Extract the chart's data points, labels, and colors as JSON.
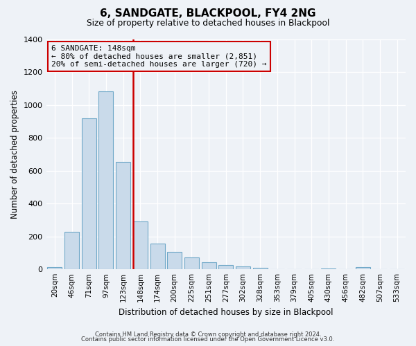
{
  "title": "6, SANDGATE, BLACKPOOL, FY4 2NG",
  "subtitle": "Size of property relative to detached houses in Blackpool",
  "xlabel": "Distribution of detached houses by size in Blackpool",
  "ylabel": "Number of detached properties",
  "bar_labels": [
    "20sqm",
    "46sqm",
    "71sqm",
    "97sqm",
    "123sqm",
    "148sqm",
    "174sqm",
    "200sqm",
    "225sqm",
    "251sqm",
    "277sqm",
    "302sqm",
    "328sqm",
    "353sqm",
    "379sqm",
    "405sqm",
    "430sqm",
    "456sqm",
    "482sqm",
    "507sqm",
    "533sqm"
  ],
  "bar_values": [
    15,
    228,
    918,
    1082,
    655,
    293,
    158,
    108,
    72,
    42,
    25,
    18,
    10,
    0,
    0,
    0,
    5,
    0,
    12,
    0,
    0
  ],
  "bar_color": "#c9daea",
  "bar_edge_color": "#6fa8c8",
  "vline_x": 4.575,
  "vline_color": "#cc0000",
  "annotation_title": "6 SANDGATE: 148sqm",
  "annotation_line1": "← 80% of detached houses are smaller (2,851)",
  "annotation_line2": "20% of semi-detached houses are larger (720) →",
  "annotation_box_color": "#cc0000",
  "ylim": [
    0,
    1400
  ],
  "yticks": [
    0,
    200,
    400,
    600,
    800,
    1000,
    1200,
    1400
  ],
  "footer1": "Contains HM Land Registry data © Crown copyright and database right 2024.",
  "footer2": "Contains public sector information licensed under the Open Government Licence v3.0.",
  "background_color": "#eef2f7"
}
